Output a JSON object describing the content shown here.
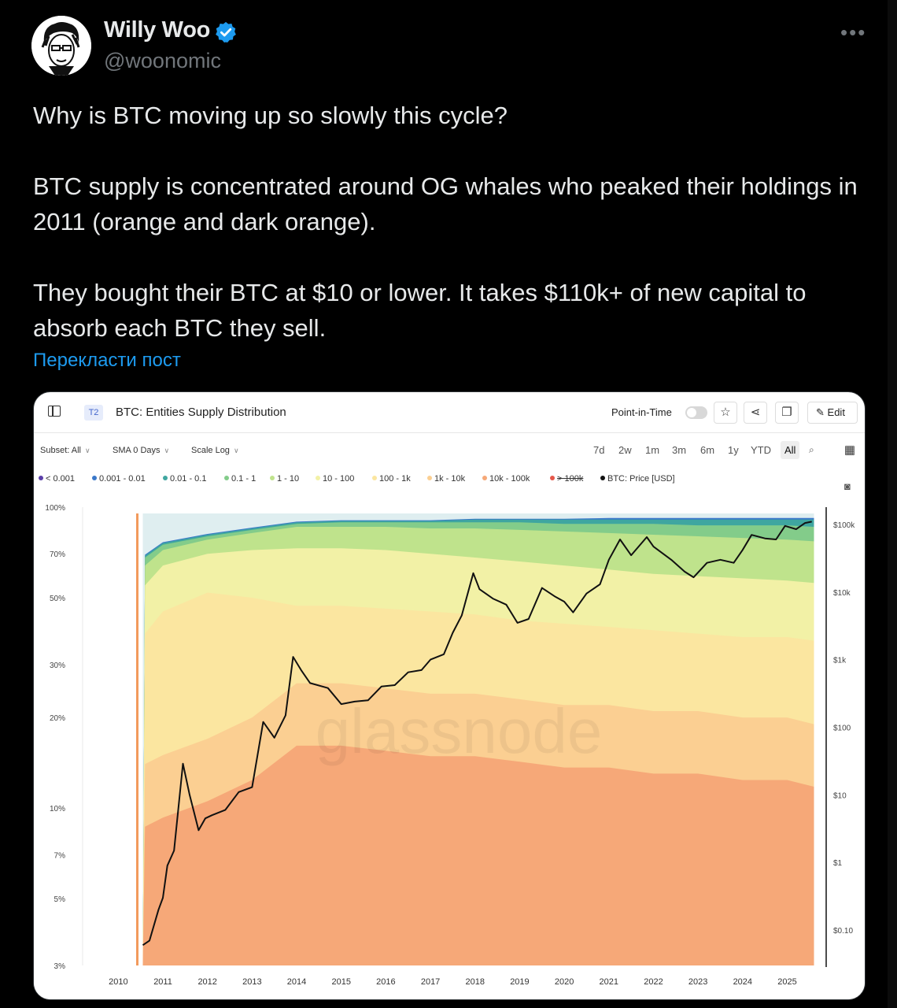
{
  "author": {
    "name": "Willy Woo",
    "handle": "@woonomic",
    "verified": true,
    "avatar_icon": "avatar-illustration"
  },
  "tweet": {
    "paragraphs": [
      "Why is BTC moving up so slowly this cycle?",
      "BTC supply is concentrated around OG whales who peaked their holdings in 2011 (orange and dark orange).",
      "They bought their BTC at $10 or lower. It takes $110k+ of new capital to absorb each BTC they sell."
    ],
    "translate_link": "Перекласти пост",
    "more_icon": "more-dots-icon"
  },
  "card": {
    "tier": "T2",
    "title": "BTC: Entities Supply Distribution",
    "point_in_time_label": "Point-in-Time",
    "edit_label": "Edit",
    "subset_label": "Subset: All",
    "sma_label": "SMA 0 Days",
    "scale_label": "Scale Log",
    "ranges": [
      "7d",
      "2w",
      "1m",
      "3m",
      "6m",
      "1y",
      "YTD",
      "All"
    ],
    "active_range": "All",
    "watermark": "glassnode"
  },
  "chart_data": {
    "type": "area",
    "title": "BTC: Entities Supply Distribution",
    "stacked": true,
    "legend_position": "top-left",
    "x_ticks": [
      "2010",
      "2011",
      "2012",
      "2013",
      "2014",
      "2015",
      "2016",
      "2017",
      "2018",
      "2019",
      "2020",
      "2021",
      "2022",
      "2023",
      "2024",
      "2025"
    ],
    "y_left_ticks": [
      "100%",
      "70%",
      "50%",
      "30%",
      "20%",
      "10%",
      "7%",
      "5%",
      "3%"
    ],
    "y_left_values": [
      100,
      70,
      50,
      30,
      20,
      10,
      7,
      5,
      3
    ],
    "y_left_scale": "log",
    "y_right_ticks": [
      "$100k",
      "$10k",
      "$1k",
      "$100",
      "$10",
      "$1",
      "$0.10"
    ],
    "y_right_values": [
      100000,
      10000,
      1000,
      100,
      10,
      1,
      0.1
    ],
    "y_right_scale": "log",
    "series": [
      {
        "name": "< 0.001",
        "color": "#5b3fa8"
      },
      {
        "name": "0.001 - 0.01",
        "color": "#3a78c9"
      },
      {
        "name": "0.01 - 0.1",
        "color": "#3fa6a0"
      },
      {
        "name": "0.1 - 1",
        "color": "#83cc8a"
      },
      {
        "name": "1 - 10",
        "color": "#bfe38c"
      },
      {
        "name": "10 - 100",
        "color": "#f2f1a6"
      },
      {
        "name": "100 - 1k",
        "color": "#fbe6a0"
      },
      {
        "name": "1k - 10k",
        "color": "#fbcf92"
      },
      {
        "name": "10k - 100k",
        "color": "#f6a878"
      },
      {
        "name": "> 100k",
        "color": "#e5574a",
        "hidden": true
      },
      {
        "name": "BTC: Price [USD]",
        "color": "#111111",
        "axis": "right"
      }
    ],
    "band_top_pct": [
      {
        "name": "1k - 10k",
        "points": [
          [
            2010.0,
            0
          ],
          [
            2010.6,
            14
          ],
          [
            2011.0,
            15
          ],
          [
            2012.0,
            17
          ],
          [
            2013.0,
            20
          ],
          [
            2014.0,
            26
          ],
          [
            2015.0,
            26
          ],
          [
            2016.0,
            25
          ],
          [
            2017.0,
            24
          ],
          [
            2018.0,
            24
          ],
          [
            2019.0,
            23
          ],
          [
            2020.0,
            22
          ],
          [
            2021.0,
            22
          ],
          [
            2022.0,
            21
          ],
          [
            2023.0,
            21
          ],
          [
            2024.0,
            20
          ],
          [
            2025.0,
            20
          ],
          [
            2025.6,
            19
          ]
        ]
      },
      {
        "name": "100 - 1k",
        "points": [
          [
            2010.0,
            0
          ],
          [
            2010.6,
            38
          ],
          [
            2011.0,
            45
          ],
          [
            2012.0,
            52
          ],
          [
            2013.0,
            50
          ],
          [
            2014.0,
            47
          ],
          [
            2015.0,
            47
          ],
          [
            2016.0,
            46
          ],
          [
            2017.0,
            45
          ],
          [
            2018.0,
            44
          ],
          [
            2019.0,
            42
          ],
          [
            2020.0,
            41
          ],
          [
            2021.0,
            40
          ],
          [
            2022.0,
            39
          ],
          [
            2023.0,
            38
          ],
          [
            2024.0,
            37
          ],
          [
            2025.0,
            37
          ],
          [
            2025.6,
            36
          ]
        ]
      },
      {
        "name": "10 - 100",
        "points": [
          [
            2010.0,
            0
          ],
          [
            2010.6,
            55
          ],
          [
            2011.0,
            64
          ],
          [
            2012.0,
            70
          ],
          [
            2013.0,
            72
          ],
          [
            2014.0,
            73
          ],
          [
            2015.0,
            73
          ],
          [
            2016.0,
            72
          ],
          [
            2017.0,
            70
          ],
          [
            2018.0,
            68
          ],
          [
            2019.0,
            66
          ],
          [
            2020.0,
            64
          ],
          [
            2021.0,
            62
          ],
          [
            2022.0,
            60
          ],
          [
            2023.0,
            59
          ],
          [
            2024.0,
            58
          ],
          [
            2025.0,
            57
          ],
          [
            2025.6,
            56
          ]
        ]
      },
      {
        "name": "1 - 10",
        "points": [
          [
            2010.0,
            0
          ],
          [
            2010.6,
            64
          ],
          [
            2011.0,
            72
          ],
          [
            2012.0,
            78
          ],
          [
            2013.0,
            82
          ],
          [
            2014.0,
            86
          ],
          [
            2015.0,
            86
          ],
          [
            2016.0,
            86
          ],
          [
            2017.0,
            85
          ],
          [
            2018.0,
            85
          ],
          [
            2019.0,
            84
          ],
          [
            2020.0,
            83
          ],
          [
            2021.0,
            82
          ],
          [
            2022.0,
            81
          ],
          [
            2023.0,
            80
          ],
          [
            2024.0,
            79
          ],
          [
            2025.0,
            78
          ],
          [
            2025.6,
            77
          ]
        ]
      },
      {
        "name": "0.1 - 1",
        "points": [
          [
            2010.0,
            0
          ],
          [
            2010.6,
            68
          ],
          [
            2011.0,
            75
          ],
          [
            2012.0,
            80
          ],
          [
            2013.0,
            84
          ],
          [
            2014.0,
            88
          ],
          [
            2015.0,
            89
          ],
          [
            2016.0,
            89
          ],
          [
            2017.0,
            89
          ],
          [
            2018.0,
            89
          ],
          [
            2019.0,
            89
          ],
          [
            2020.0,
            88
          ],
          [
            2021.0,
            88
          ],
          [
            2022.0,
            88
          ],
          [
            2023.0,
            87
          ],
          [
            2024.0,
            87
          ],
          [
            2025.0,
            87
          ],
          [
            2025.6,
            86
          ]
        ]
      },
      {
        "name": "0.01 - 0.1",
        "points": [
          [
            2010.0,
            0
          ],
          [
            2010.6,
            69
          ],
          [
            2011.0,
            76
          ],
          [
            2012.0,
            81
          ],
          [
            2013.0,
            85
          ],
          [
            2014.0,
            89
          ],
          [
            2015.0,
            90
          ],
          [
            2016.0,
            90
          ],
          [
            2017.0,
            90
          ],
          [
            2018.0,
            91
          ],
          [
            2019.0,
            91
          ],
          [
            2020.0,
            91
          ],
          [
            2021.0,
            91
          ],
          [
            2022.0,
            91
          ],
          [
            2023.0,
            91
          ],
          [
            2024.0,
            91
          ],
          [
            2025.0,
            91
          ],
          [
            2025.6,
            91
          ]
        ]
      },
      {
        "name": "0.001 - 0.01",
        "points": [
          [
            2010.0,
            0
          ],
          [
            2010.6,
            69.5
          ],
          [
            2011.0,
            76.5
          ],
          [
            2012.0,
            81.5
          ],
          [
            2013.0,
            85.5
          ],
          [
            2014.0,
            89.5
          ],
          [
            2015.0,
            90.5
          ],
          [
            2016.0,
            90.5
          ],
          [
            2017.0,
            90.5
          ],
          [
            2018.0,
            91.5
          ],
          [
            2019.0,
            91.5
          ],
          [
            2020.0,
            91.5
          ],
          [
            2021.0,
            92
          ],
          [
            2022.0,
            92
          ],
          [
            2023.0,
            92
          ],
          [
            2024.0,
            92
          ],
          [
            2025.0,
            92
          ],
          [
            2025.6,
            92
          ]
        ]
      }
    ],
    "price_usd": [
      [
        2010.55,
        0.06
      ],
      [
        2010.7,
        0.07
      ],
      [
        2010.9,
        0.2
      ],
      [
        2011.0,
        0.3
      ],
      [
        2011.1,
        0.9
      ],
      [
        2011.25,
        1.5
      ],
      [
        2011.45,
        29
      ],
      [
        2011.6,
        10
      ],
      [
        2011.8,
        3
      ],
      [
        2011.95,
        4.5
      ],
      [
        2012.1,
        5
      ],
      [
        2012.4,
        6
      ],
      [
        2012.7,
        11
      ],
      [
        2013.0,
        13
      ],
      [
        2013.25,
        120
      ],
      [
        2013.5,
        70
      ],
      [
        2013.75,
        150
      ],
      [
        2013.92,
        1100
      ],
      [
        2014.1,
        700
      ],
      [
        2014.3,
        450
      ],
      [
        2014.7,
        380
      ],
      [
        2015.0,
        220
      ],
      [
        2015.3,
        240
      ],
      [
        2015.6,
        250
      ],
      [
        2015.9,
        400
      ],
      [
        2016.2,
        420
      ],
      [
        2016.5,
        650
      ],
      [
        2016.8,
        700
      ],
      [
        2017.0,
        1000
      ],
      [
        2017.3,
        1200
      ],
      [
        2017.5,
        2500
      ],
      [
        2017.7,
        4500
      ],
      [
        2017.96,
        19000
      ],
      [
        2018.1,
        11000
      ],
      [
        2018.4,
        8000
      ],
      [
        2018.7,
        6500
      ],
      [
        2018.95,
        3500
      ],
      [
        2019.2,
        4000
      ],
      [
        2019.5,
        11500
      ],
      [
        2019.8,
        8500
      ],
      [
        2020.0,
        7200
      ],
      [
        2020.2,
        5000
      ],
      [
        2020.5,
        9500
      ],
      [
        2020.8,
        13000
      ],
      [
        2021.0,
        30000
      ],
      [
        2021.25,
        60000
      ],
      [
        2021.5,
        35000
      ],
      [
        2021.85,
        65000
      ],
      [
        2022.0,
        47000
      ],
      [
        2022.4,
        30000
      ],
      [
        2022.7,
        20000
      ],
      [
        2022.9,
        16500
      ],
      [
        2023.2,
        27000
      ],
      [
        2023.5,
        30000
      ],
      [
        2023.8,
        27000
      ],
      [
        2024.0,
        42000
      ],
      [
        2024.2,
        70000
      ],
      [
        2024.5,
        62000
      ],
      [
        2024.75,
        60000
      ],
      [
        2024.95,
        95000
      ],
      [
        2025.2,
        85000
      ],
      [
        2025.4,
        105000
      ],
      [
        2025.55,
        110000
      ]
    ]
  }
}
